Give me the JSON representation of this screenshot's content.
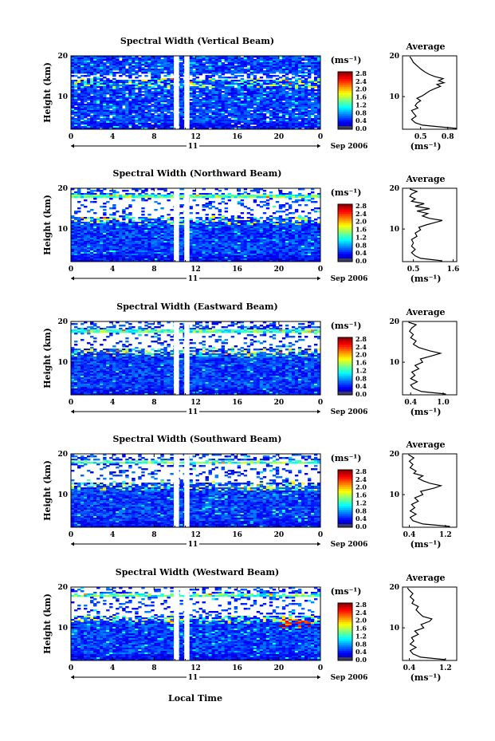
{
  "figure": {
    "bottom_label": "Local Time",
    "date_label": "Sep 2006",
    "day_label": "11"
  },
  "chart_data": [
    {
      "type": "heatmap",
      "title": "Spectral Width (Vertical Beam)",
      "ylabel": "Height (km)",
      "x_ticks": [
        "0",
        "4",
        "8",
        "12",
        "16",
        "20",
        "0"
      ],
      "y_ticks": [
        "20",
        "10"
      ],
      "xlim": [
        0,
        24
      ],
      "ylim": [
        2,
        20
      ],
      "colorbar_unit": "(ms⁻¹)",
      "colorbar_ticks": [
        "2.8",
        "2.4",
        "2.0",
        "1.6",
        "1.2",
        "0.8",
        "0.4",
        "0.0"
      ],
      "profile": {
        "title": "Average",
        "xlabel": "(ms⁻¹)",
        "x_ticks": [
          "0.5",
          "0.8"
        ],
        "xlim": [
          0.3,
          0.9
        ],
        "y_ticks": [
          "20",
          "10"
        ],
        "points": [
          [
            0.9,
            2.2
          ],
          [
            0.7,
            2.6
          ],
          [
            0.52,
            3.0
          ],
          [
            0.44,
            3.6
          ],
          [
            0.4,
            4.4
          ],
          [
            0.45,
            5.2
          ],
          [
            0.42,
            6.0
          ],
          [
            0.4,
            6.6
          ],
          [
            0.47,
            7.2
          ],
          [
            0.44,
            7.8
          ],
          [
            0.46,
            8.4
          ],
          [
            0.5,
            9.0
          ],
          [
            0.46,
            9.6
          ],
          [
            0.52,
            10.2
          ],
          [
            0.56,
            10.8
          ],
          [
            0.6,
            11.4
          ],
          [
            0.66,
            12.0
          ],
          [
            0.72,
            12.5
          ],
          [
            0.68,
            13.0
          ],
          [
            0.76,
            13.4
          ],
          [
            0.7,
            13.9
          ],
          [
            0.75,
            14.4
          ],
          [
            0.66,
            14.9
          ],
          [
            0.6,
            15.4
          ],
          [
            0.55,
            16.0
          ],
          [
            0.5,
            16.8
          ],
          [
            0.46,
            17.6
          ],
          [
            0.42,
            18.4
          ],
          [
            0.4,
            19.2
          ],
          [
            0.38,
            19.8
          ]
        ]
      },
      "gaps": [
        [
          9.9,
          10.4
        ],
        [
          10.9,
          11.4
        ]
      ]
    },
    {
      "type": "heatmap",
      "title": "Spectral Width (Northward Beam)",
      "ylabel": "Height (km)",
      "x_ticks": [
        "0",
        "4",
        "8",
        "12",
        "16",
        "20",
        "0"
      ],
      "y_ticks": [
        "20",
        "10"
      ],
      "xlim": [
        0,
        24
      ],
      "ylim": [
        2,
        20
      ],
      "colorbar_unit": "(ms⁻¹)",
      "colorbar_ticks": [
        "2.8",
        "2.4",
        "2.0",
        "1.6",
        "1.2",
        "0.8",
        "0.4",
        "0.0"
      ],
      "profile": {
        "title": "Average",
        "xlabel": "(ms⁻¹)",
        "x_ticks": [
          "0.5",
          "1.6"
        ],
        "xlim": [
          0.2,
          1.7
        ],
        "y_ticks": [
          "20",
          "10"
        ],
        "points": [
          [
            1.3,
            2.2
          ],
          [
            0.7,
            2.8
          ],
          [
            0.55,
            3.4
          ],
          [
            0.45,
            4.2
          ],
          [
            0.55,
            5.0
          ],
          [
            0.45,
            5.8
          ],
          [
            0.5,
            6.6
          ],
          [
            0.45,
            7.4
          ],
          [
            0.6,
            8.2
          ],
          [
            0.55,
            9.0
          ],
          [
            0.7,
            9.8
          ],
          [
            0.65,
            10.4
          ],
          [
            0.85,
            11.0
          ],
          [
            1.1,
            11.6
          ],
          [
            1.3,
            12.1
          ],
          [
            0.95,
            12.6
          ],
          [
            0.75,
            13.2
          ],
          [
            0.9,
            13.8
          ],
          [
            0.6,
            14.4
          ],
          [
            0.95,
            15.0
          ],
          [
            0.55,
            15.6
          ],
          [
            0.8,
            16.2
          ],
          [
            0.45,
            16.8
          ],
          [
            0.55,
            17.4
          ],
          [
            0.4,
            18.0
          ],
          [
            0.45,
            18.6
          ],
          [
            0.6,
            19.2
          ],
          [
            0.4,
            19.8
          ]
        ]
      },
      "gaps": [
        [
          9.9,
          10.4
        ],
        [
          10.9,
          11.4
        ]
      ]
    },
    {
      "type": "heatmap",
      "title": "Spectral Width (Eastward Beam)",
      "ylabel": "Height (km)",
      "x_ticks": [
        "0",
        "4",
        "8",
        "12",
        "16",
        "20",
        "0"
      ],
      "y_ticks": [
        "20",
        "10"
      ],
      "xlim": [
        0,
        24
      ],
      "ylim": [
        2,
        20
      ],
      "colorbar_unit": "(ms⁻¹)",
      "colorbar_ticks": [
        "2.8",
        "2.4",
        "2.0",
        "1.6",
        "1.2",
        "0.8",
        "0.4",
        "0.0"
      ],
      "profile": {
        "title": "Average",
        "xlabel": "(ms⁻¹)",
        "x_ticks": [
          "0.4",
          "1.0"
        ],
        "xlim": [
          0.25,
          1.25
        ],
        "y_ticks": [
          "20",
          "10"
        ],
        "points": [
          [
            1.05,
            2.2
          ],
          [
            0.6,
            2.8
          ],
          [
            0.45,
            3.6
          ],
          [
            0.4,
            4.4
          ],
          [
            0.52,
            5.2
          ],
          [
            0.4,
            6.0
          ],
          [
            0.48,
            6.8
          ],
          [
            0.42,
            7.6
          ],
          [
            0.55,
            8.4
          ],
          [
            0.48,
            9.2
          ],
          [
            0.62,
            10.0
          ],
          [
            0.58,
            10.8
          ],
          [
            0.8,
            11.6
          ],
          [
            0.95,
            12.2
          ],
          [
            0.75,
            12.8
          ],
          [
            0.55,
            13.6
          ],
          [
            0.45,
            14.4
          ],
          [
            0.5,
            15.2
          ],
          [
            0.4,
            16.0
          ],
          [
            0.45,
            16.8
          ],
          [
            0.38,
            17.6
          ],
          [
            0.42,
            18.4
          ],
          [
            0.5,
            19.2
          ],
          [
            0.36,
            19.8
          ]
        ]
      },
      "gaps": [
        [
          9.9,
          10.4
        ],
        [
          10.9,
          11.4
        ]
      ]
    },
    {
      "type": "heatmap",
      "title": "Spectral Width (Southward Beam)",
      "ylabel": "Height (km)",
      "x_ticks": [
        "0",
        "4",
        "8",
        "12",
        "16",
        "20",
        "0"
      ],
      "y_ticks": [
        "20",
        "10"
      ],
      "xlim": [
        0,
        24
      ],
      "ylim": [
        2,
        20
      ],
      "colorbar_unit": "(ms⁻¹)",
      "colorbar_ticks": [
        "2.8",
        "2.4",
        "2.0",
        "1.6",
        "1.2",
        "0.8",
        "0.4",
        "0.0"
      ],
      "profile": {
        "title": "Average",
        "xlabel": "(ms⁻¹)",
        "x_ticks": [
          "0.4",
          "1.2"
        ],
        "xlim": [
          0.25,
          1.45
        ],
        "y_ticks": [
          "20",
          "10"
        ],
        "points": [
          [
            1.3,
            2.2
          ],
          [
            0.7,
            2.8
          ],
          [
            0.48,
            3.6
          ],
          [
            0.42,
            4.4
          ],
          [
            0.55,
            5.2
          ],
          [
            0.42,
            6.0
          ],
          [
            0.52,
            6.8
          ],
          [
            0.45,
            7.6
          ],
          [
            0.6,
            8.4
          ],
          [
            0.52,
            9.2
          ],
          [
            0.7,
            10.0
          ],
          [
            0.65,
            10.8
          ],
          [
            0.95,
            11.6
          ],
          [
            1.1,
            12.2
          ],
          [
            0.85,
            12.8
          ],
          [
            0.7,
            13.4
          ],
          [
            0.6,
            14.0
          ],
          [
            0.7,
            14.6
          ],
          [
            0.5,
            15.2
          ],
          [
            0.55,
            15.8
          ],
          [
            0.42,
            16.6
          ],
          [
            0.48,
            17.4
          ],
          [
            0.4,
            18.2
          ],
          [
            0.5,
            19.0
          ],
          [
            0.38,
            19.8
          ]
        ]
      },
      "gaps": [
        [
          9.9,
          10.4
        ],
        [
          10.9,
          11.4
        ]
      ]
    },
    {
      "type": "heatmap",
      "title": "Spectral Width (Westward Beam)",
      "ylabel": "Height (km)",
      "x_ticks": [
        "0",
        "4",
        "8",
        "12",
        "16",
        "20",
        "0"
      ],
      "y_ticks": [
        "20",
        "10"
      ],
      "xlim": [
        0,
        24
      ],
      "ylim": [
        2,
        20
      ],
      "colorbar_unit": "(ms⁻¹)",
      "colorbar_ticks": [
        "2.8",
        "2.4",
        "2.0",
        "1.6",
        "1.2",
        "0.8",
        "0.4",
        "0.0"
      ],
      "profile": {
        "title": "Average",
        "xlabel": "(ms⁻¹)",
        "x_ticks": [
          "0.4",
          "1.2"
        ],
        "xlim": [
          0.25,
          1.45
        ],
        "y_ticks": [
          "20",
          "10"
        ],
        "points": [
          [
            1.2,
            2.2
          ],
          [
            0.65,
            2.8
          ],
          [
            0.48,
            3.6
          ],
          [
            0.42,
            4.4
          ],
          [
            0.55,
            5.2
          ],
          [
            0.42,
            6.0
          ],
          [
            0.5,
            6.8
          ],
          [
            0.45,
            7.6
          ],
          [
            0.6,
            8.4
          ],
          [
            0.52,
            9.2
          ],
          [
            0.72,
            10.0
          ],
          [
            0.66,
            10.8
          ],
          [
            0.85,
            11.6
          ],
          [
            0.9,
            12.2
          ],
          [
            0.7,
            12.8
          ],
          [
            0.62,
            13.6
          ],
          [
            0.55,
            14.4
          ],
          [
            0.6,
            15.2
          ],
          [
            0.46,
            16.0
          ],
          [
            0.5,
            16.8
          ],
          [
            0.42,
            17.6
          ],
          [
            0.48,
            18.4
          ],
          [
            0.4,
            19.2
          ],
          [
            0.36,
            19.8
          ]
        ]
      },
      "gaps": [
        [
          9.9,
          10.4
        ],
        [
          10.9,
          11.4
        ]
      ]
    }
  ]
}
